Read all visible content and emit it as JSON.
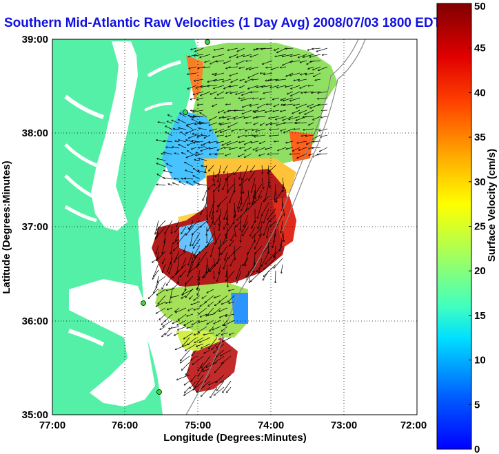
{
  "title": "Southern Mid-Atlantic Raw Velocities (1 Day Avg) 2008/07/03 1800 EDT",
  "map": {
    "xlabel": "Longitude (Degrees:Minutes)",
    "ylabel": "Latitude (Degrees:Minutes)",
    "x_ticks": [
      "77:00",
      "76:00",
      "75:00",
      "74:00",
      "73:00",
      "72:00"
    ],
    "y_ticks": [
      "39:00",
      "38:00",
      "37:00",
      "36:00",
      "35:00"
    ],
    "xlim": [
      -77,
      -72
    ],
    "ylim": [
      35,
      39
    ],
    "grid": "dotted",
    "land_color": "#55f0a8",
    "water_color": "#ffffff",
    "station_color": "#33dd33"
  },
  "colorbar": {
    "label": "Surface Velocity (cm/s)",
    "ticks": [
      "50",
      "45",
      "40",
      "35",
      "30",
      "25",
      "20",
      "15",
      "10",
      "5",
      "0"
    ],
    "range": [
      0,
      50
    ],
    "colormap": "jet"
  },
  "chart_data": {
    "type": "heatmap",
    "variable": "Surface Velocity (cm/s)",
    "x_range": [
      -77,
      -72
    ],
    "y_range": [
      35,
      39
    ],
    "value_range": [
      0,
      50
    ]
  }
}
